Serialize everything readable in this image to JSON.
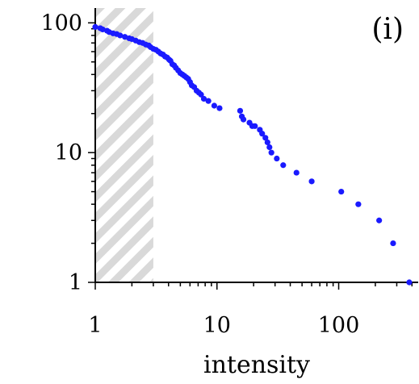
{
  "chart_data": {
    "type": "scatter",
    "panel_label": "(i)",
    "xlabel": "intensity",
    "ylabel": "",
    "x_scale": "log",
    "y_scale": "log",
    "xlim": [
      1,
      450
    ],
    "ylim": [
      1,
      130
    ],
    "x_ticks": [
      1,
      10,
      100
    ],
    "x_tick_labels": [
      "1",
      "10",
      "100"
    ],
    "y_ticks": [
      1,
      10,
      100
    ],
    "y_tick_labels": [
      "1",
      "10",
      "100"
    ],
    "grid": false,
    "legend": "none",
    "shaded_region": {
      "x_from": 1,
      "x_to": 3
    },
    "marker_color": "#1a1aff",
    "shade_color": "#d9d9d9",
    "series": [
      {
        "x": [
          1.0,
          1.1,
          1.15,
          1.25,
          1.3,
          1.4,
          1.5,
          1.6,
          1.75,
          1.9,
          2.0,
          2.15,
          2.3,
          2.45,
          2.6,
          2.75,
          2.85,
          3.0,
          3.15,
          3.3,
          3.45,
          3.6,
          3.75,
          3.9,
          4.05,
          4.15,
          4.3,
          4.45,
          4.6,
          4.8,
          5.0,
          5.2,
          5.4,
          5.6,
          5.8,
          6.0,
          6.2,
          6.5,
          6.8,
          7.1,
          7.4,
          7.8,
          8.5,
          9.5,
          10.5,
          15.5,
          16.0,
          16.5,
          18.5,
          19.5,
          20.5,
          22.5,
          23.5,
          25.0,
          26.0,
          27.0,
          28.0,
          31.0,
          35.0,
          45.0,
          60.0,
          105.0,
          145.0,
          215.0,
          280.0,
          380.0
        ],
        "y": [
          93,
          91,
          89,
          87,
          85,
          83,
          82,
          80,
          78,
          76,
          75,
          73,
          71,
          70,
          68,
          67,
          65,
          63,
          62,
          60,
          58,
          57,
          55,
          54,
          52,
          51,
          48,
          47,
          45,
          43,
          41,
          40,
          39,
          38,
          37,
          35,
          33,
          32,
          30,
          29,
          28,
          26,
          25,
          23,
          22,
          21,
          19,
          18,
          17,
          16,
          16,
          15,
          14,
          13,
          12,
          11,
          10,
          9,
          8,
          7,
          6,
          5,
          4,
          3,
          2,
          1
        ]
      }
    ]
  }
}
